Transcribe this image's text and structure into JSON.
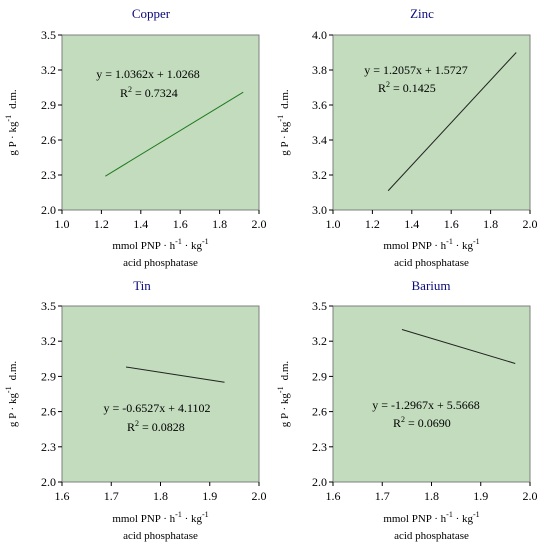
{
  "chart_data": [
    {
      "type": "line",
      "title": "Copper",
      "xlabel_line1": "mmol PNP · h",
      "xlabel_sup1": "-1",
      "xlabel_mid": " · kg",
      "xlabel_sup2": "-1",
      "xlabel_line2": "acid phosphatase",
      "ylabel_main": "g P · kg",
      "ylabel_sup": "-1",
      "ylabel_tail": "d.m.",
      "xlim": [
        1.0,
        2.0
      ],
      "ylim": [
        2.0,
        3.5
      ],
      "xticks": [
        "1.0",
        "1.2",
        "1.4",
        "1.6",
        "1.8",
        "2.0"
      ],
      "yticks": [
        "2.0",
        "2.3",
        "2.6",
        "2.9",
        "3.2",
        "3.5"
      ],
      "line_color": "#1f7a1f",
      "series": [
        {
          "x": [
            1.22,
            1.92
          ],
          "y": [
            2.29,
            3.01
          ]
        }
      ],
      "equation": "y = 1.0362x + 1.0268",
      "r2_prefix": "R",
      "r2_sup": "2",
      "r2_value": " = 0.7324"
    },
    {
      "type": "line",
      "title": "Zinc",
      "xlabel_line1": "mmol PNP · h",
      "xlabel_sup1": "-1",
      "xlabel_mid": " · kg",
      "xlabel_sup2": "-1",
      "xlabel_line2": "acid phosphatase",
      "ylabel_main": "g P · kg",
      "ylabel_sup": "-1",
      "ylabel_tail": "d.m.",
      "xlim": [
        1.0,
        2.0
      ],
      "ylim": [
        3.0,
        4.0
      ],
      "xticks": [
        "1.0",
        "1.2",
        "1.4",
        "1.6",
        "1.8",
        "2.0"
      ],
      "yticks": [
        "3.0",
        "3.2",
        "3.4",
        "3.6",
        "3.8",
        "4.0"
      ],
      "line_color": "#222222",
      "series": [
        {
          "x": [
            1.28,
            1.93
          ],
          "y": [
            3.11,
            3.9
          ]
        }
      ],
      "equation": "y = 1.2057x + 1.5727",
      "r2_prefix": "R",
      "r2_sup": "2",
      "r2_value": " = 0.1425"
    },
    {
      "type": "line",
      "title": "Tin",
      "xlabel_line1": "mmol PNP · h",
      "xlabel_sup1": "-1",
      "xlabel_mid": " · kg",
      "xlabel_sup2": "-1",
      "xlabel_line2": "acid phosphatase",
      "ylabel_main": "g P · kg",
      "ylabel_sup": "-1",
      "ylabel_tail": "d.m.",
      "xlim": [
        1.6,
        2.0
      ],
      "ylim": [
        2.0,
        3.5
      ],
      "xticks": [
        "1.6",
        "1.7",
        "1.8",
        "1.9",
        "2.0"
      ],
      "yticks": [
        "2.0",
        "2.3",
        "2.6",
        "2.9",
        "3.2",
        "3.5"
      ],
      "line_color": "#222222",
      "series": [
        {
          "x": [
            1.73,
            1.93
          ],
          "y": [
            2.98,
            2.85
          ]
        }
      ],
      "equation": "y = -0.6527x + 4.1102",
      "r2_prefix": "R",
      "r2_sup": "2",
      "r2_value": " = 0.0828"
    },
    {
      "type": "line",
      "title": "Barium",
      "xlabel_line1": "mmol PNP · h",
      "xlabel_sup1": "-1",
      "xlabel_mid": " · kg",
      "xlabel_sup2": "-1",
      "xlabel_line2": "acid phosphatase",
      "ylabel_main": "g P · kg",
      "ylabel_sup": "-1",
      "ylabel_tail": "d.m.",
      "xlim": [
        1.6,
        2.0
      ],
      "ylim": [
        2.0,
        3.5
      ],
      "xticks": [
        "1.6",
        "1.7",
        "1.8",
        "1.9",
        "2.0"
      ],
      "yticks": [
        "2.0",
        "2.3",
        "2.6",
        "2.9",
        "3.2",
        "3.5"
      ],
      "line_color": "#222222",
      "series": [
        {
          "x": [
            1.74,
            1.97
          ],
          "y": [
            3.3,
            3.01
          ]
        }
      ],
      "equation": "y = -1.2967x + 5.5668",
      "r2_prefix": "R",
      "r2_sup": "2",
      "r2_value": " = 0.0690"
    }
  ],
  "colors": {
    "plot_background": "#c2dcbd",
    "plot_border": "#7f7f7f",
    "title_color": "#0a0a7a"
  }
}
